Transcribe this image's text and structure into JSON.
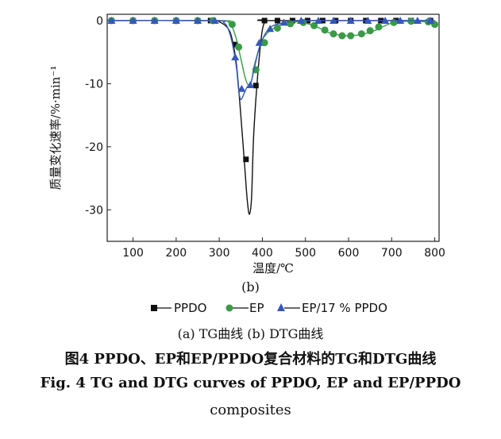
{
  "chart_data": {
    "type": "line",
    "xlabel": "温度/℃",
    "ylabel": "质量变化速率/%·min⁻¹",
    "xlim": [
      40,
      810
    ],
    "ylim": [
      -35,
      1
    ],
    "xticks": [
      100,
      200,
      300,
      400,
      500,
      600,
      700,
      800
    ],
    "yticks": [
      0,
      -10,
      -20,
      -30
    ],
    "panel_label": "(b)",
    "series": [
      {
        "name": "PPDO",
        "color": "#111111",
        "marker": "square",
        "curve": {
          "x": [
            40,
            280,
            300,
            320,
            330,
            340,
            350,
            360,
            365,
            370,
            375,
            380,
            390,
            400,
            410,
            420,
            800
          ],
          "y": [
            0,
            0,
            -0.2,
            -1.2,
            -3,
            -7,
            -15,
            -24,
            -28.5,
            -30.7,
            -28,
            -18,
            -8,
            -1.5,
            0,
            0,
            0
          ]
        },
        "markers": {
          "x": [
            50,
            100,
            150,
            200,
            250,
            280,
            337,
            362,
            385,
            405,
            435,
            470,
            505,
            540,
            570,
            605,
            640,
            675,
            710,
            745,
            790
          ],
          "y": [
            0,
            0,
            0,
            0,
            0,
            0,
            -3.8,
            -22,
            -10.3,
            0,
            0,
            0,
            0,
            0,
            0,
            0,
            0,
            0,
            0,
            0,
            0
          ]
        }
      },
      {
        "name": "EP",
        "color": "#3a9a48",
        "marker": "circle",
        "curve": {
          "x": [
            40,
            300,
            320,
            330,
            340,
            350,
            360,
            368,
            375,
            380,
            390,
            400,
            420,
            450,
            480,
            520,
            550,
            580,
            600,
            630,
            660,
            700,
            740,
            780,
            800
          ],
          "y": [
            0,
            0,
            -0.2,
            -1,
            -3,
            -6,
            -9,
            -10.3,
            -9.5,
            -7.5,
            -5,
            -3,
            -1.5,
            -0.5,
            -0.2,
            -0.8,
            -1.8,
            -2.3,
            -2.4,
            -2.2,
            -1.6,
            -0.4,
            -0.1,
            -0.2,
            -0.4
          ]
        },
        "markers": {
          "x": [
            50,
            100,
            150,
            200,
            250,
            285,
            330,
            345,
            385,
            405,
            435,
            465,
            495,
            520,
            545,
            565,
            585,
            605,
            630,
            650,
            670,
            705,
            745,
            785,
            800
          ],
          "y": [
            0,
            0,
            0,
            0,
            0,
            0,
            -0.6,
            -4.2,
            -7.8,
            -3.5,
            -1.2,
            -0.5,
            -0.3,
            -0.8,
            -1.5,
            -2.1,
            -2.4,
            -2.4,
            -2.1,
            -1.6,
            -1,
            -0.3,
            -0.1,
            -0.2,
            -0.6
          ]
        }
      },
      {
        "name": "EP/17 % PPDO",
        "color": "#3558b8",
        "marker": "triangle",
        "curve": {
          "x": [
            40,
            290,
            310,
            320,
            330,
            340,
            345,
            350,
            358,
            365,
            372,
            380,
            390,
            400,
            420,
            460,
            500,
            600,
            700,
            800
          ],
          "y": [
            0,
            0,
            -0.3,
            -1.2,
            -3.5,
            -7.5,
            -11,
            -12.5,
            -11.5,
            -10.5,
            -10.2,
            -8,
            -5,
            -3,
            -1,
            -0.2,
            0,
            0,
            0,
            0
          ]
        },
        "markers": {
          "x": [
            50,
            100,
            150,
            200,
            250,
            290,
            337,
            352,
            372,
            393,
            418,
            450,
            490,
            530,
            565,
            605,
            645,
            685,
            720,
            760,
            790
          ],
          "y": [
            0,
            0,
            0,
            0,
            0,
            0,
            -5.8,
            -10.8,
            -10.2,
            -3.5,
            -1.3,
            -0.3,
            0,
            0,
            0,
            0,
            0,
            0,
            0,
            0,
            0
          ]
        }
      }
    ]
  },
  "legend": [
    {
      "label": "PPDO",
      "marker": "square",
      "color": "#111111"
    },
    {
      "label": "EP",
      "marker": "circle",
      "color": "#3a9a48"
    },
    {
      "label": "EP/17 % PPDO",
      "marker": "triangle",
      "color": "#3558b8"
    }
  ],
  "subcaption": "(a) TG曲线   (b) DTG曲线",
  "caption_cn": "图4   PPDO、EP和EP/PPDO复合材料的TG和DTG曲线",
  "caption_en_line1": "Fig. 4    TG and DTG curves of PPDO, EP and EP/PPDO",
  "caption_en_line2": "composites"
}
